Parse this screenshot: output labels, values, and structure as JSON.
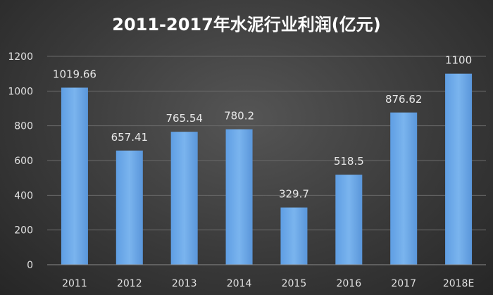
{
  "chart_data": {
    "type": "bar",
    "title": "2011-2017年水泥行业利润(亿元)",
    "categories": [
      "2011",
      "2012",
      "2013",
      "2014",
      "2015",
      "2016",
      "2017",
      "2018E"
    ],
    "values": [
      1019.66,
      657.41,
      765.54,
      780.2,
      329.7,
      518.5,
      876.62,
      1100
    ],
    "data_labels": [
      "1019.66",
      "657.41",
      "765.54",
      "780.2",
      "329.7",
      "518.5",
      "876.62",
      "1100"
    ],
    "y_ticks": [
      "0",
      "200",
      "400",
      "600",
      "800",
      "1000",
      "1200"
    ],
    "ylim": [
      0,
      1200
    ],
    "grid": true,
    "legend": "none",
    "bar_color": "#6fa8e6"
  }
}
